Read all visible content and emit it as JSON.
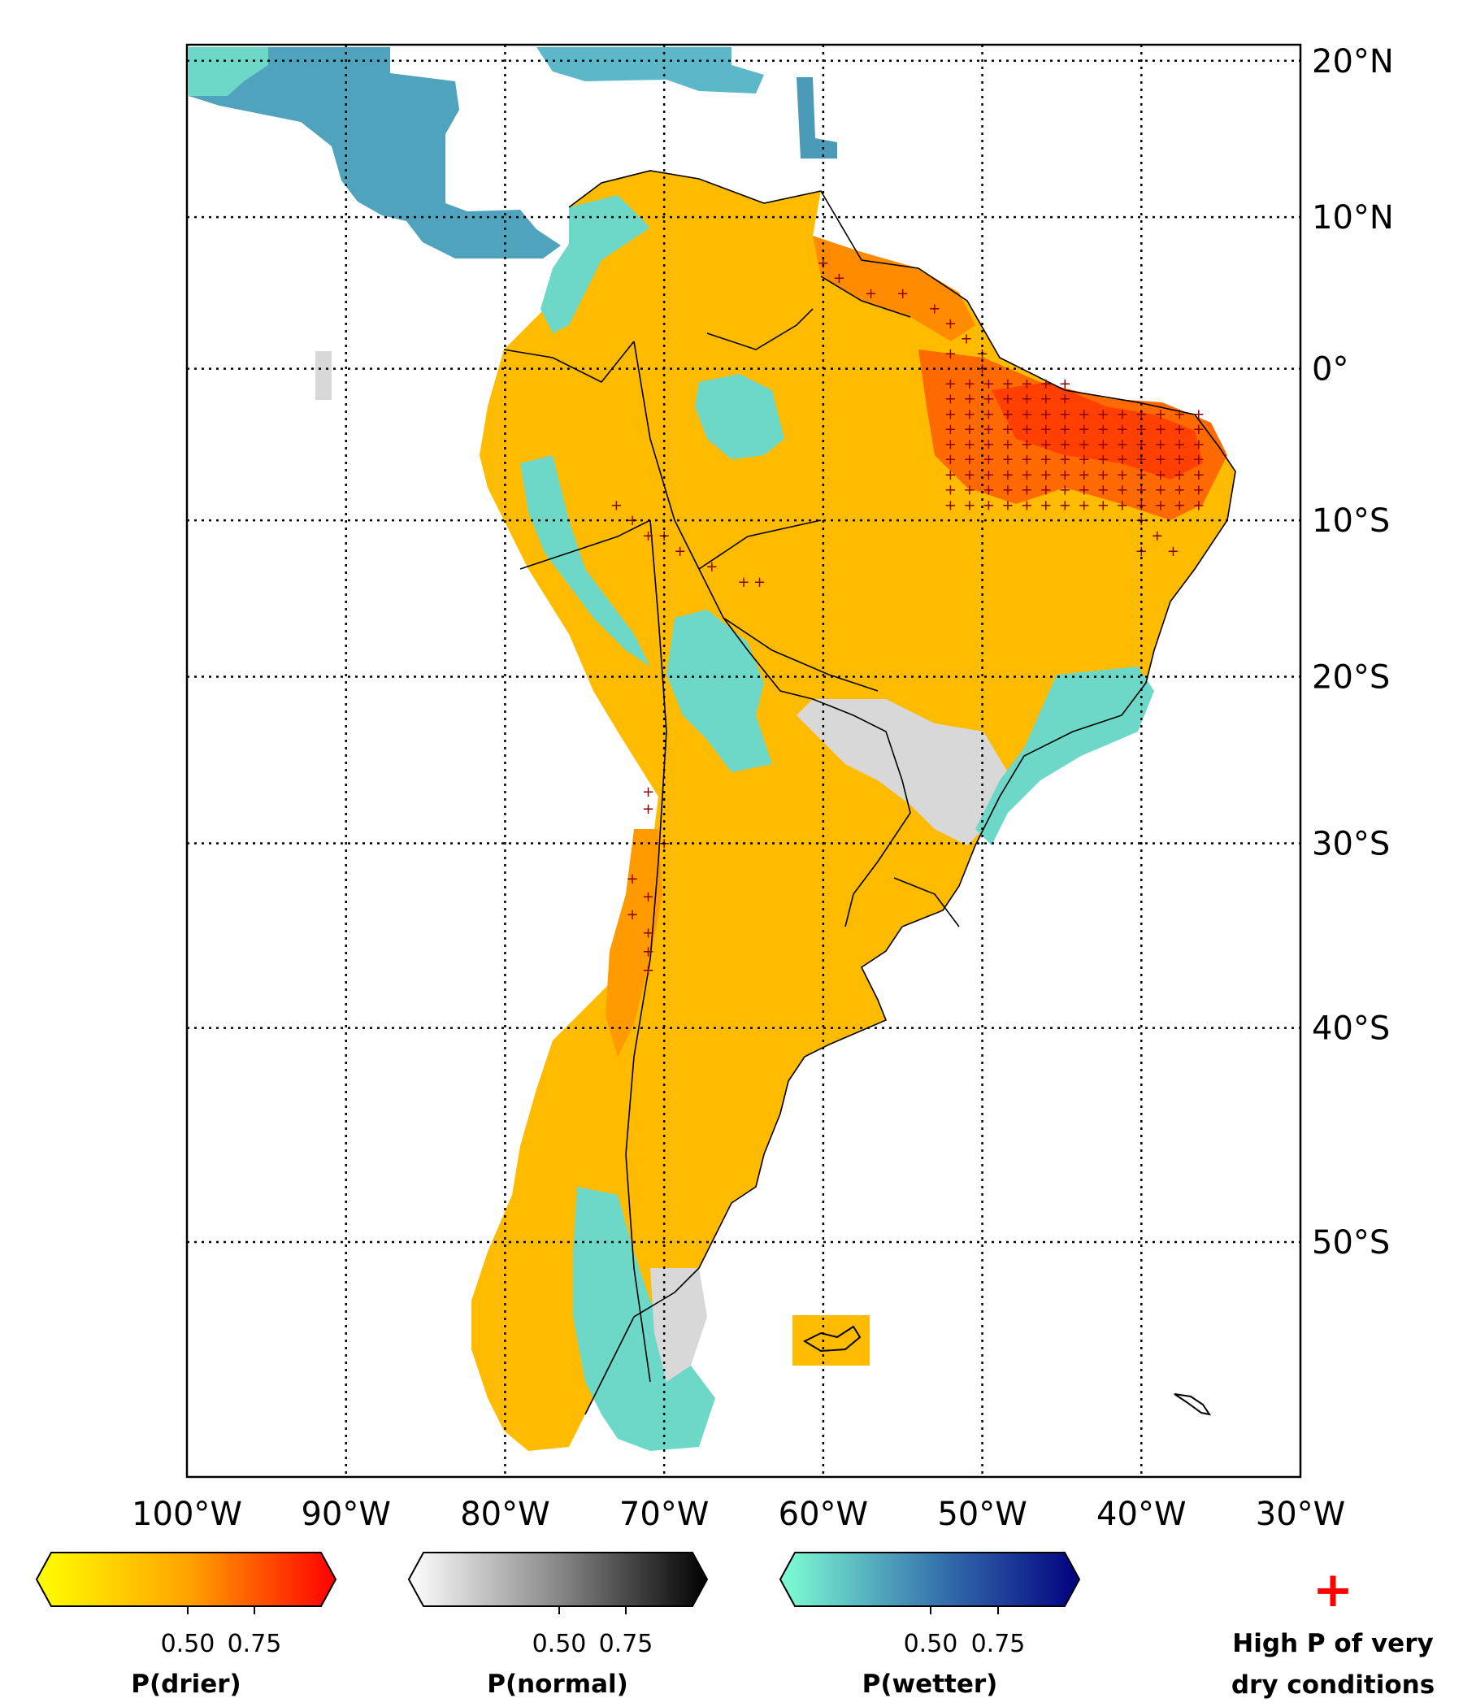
{
  "map": {
    "lon_ticks": [
      "100°W",
      "90°W",
      "80°W",
      "70°W",
      "60°W",
      "50°W",
      "40°W",
      "30°W"
    ],
    "lat_ticks": [
      "20°N",
      "10°N",
      "0°",
      "10°S",
      "20°S",
      "30°S",
      "40°S",
      "50°S"
    ],
    "extent": {
      "lon": [
        -100,
        -30
      ],
      "lat": [
        -59,
        21
      ]
    }
  },
  "colorbars": [
    {
      "title": "P(drier)",
      "ticks": [
        "0.50",
        "0.75"
      ],
      "colors": [
        "#ffff00",
        "#ffa500",
        "#ff0000"
      ]
    },
    {
      "title": "P(normal)",
      "ticks": [
        "0.50",
        "0.75"
      ],
      "colors": [
        "#ffffff",
        "#888888",
        "#000000"
      ]
    },
    {
      "title": "P(wetter)",
      "ticks": [
        "0.50",
        "0.75"
      ],
      "colors": [
        "#7fffd4",
        "#3a7bb0",
        "#000080"
      ]
    }
  ],
  "legend": {
    "symbol": "+",
    "symbol_color": "#ff0000",
    "line1": "High P of very",
    "line2": "dry conditions"
  },
  "colors": {
    "dry_yellow": "#ffd700",
    "dry_orange": "#ffa500",
    "dry_red": "#ff4500",
    "wet_teal": "#66ddcc",
    "wet_blue": "#4a9ab8",
    "normal_gray": "#d8d8d8"
  }
}
